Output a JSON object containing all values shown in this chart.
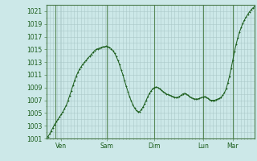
{
  "bg_color": "#cce8e8",
  "grid_color": "#aac8c8",
  "line_color": "#1a5c1a",
  "marker_color": "#1a5c1a",
  "vline_color": "#5a8a5a",
  "ylim": [
    1001,
    1022
  ],
  "ytick_min": 1001,
  "ytick_max": 1021,
  "ytick_step": 2,
  "xtick_labels": [
    "Ven",
    "Sam",
    "Dim",
    "Lun",
    "Mar"
  ],
  "xtick_positions": [
    0.07,
    0.29,
    0.52,
    0.755,
    0.895
  ],
  "vline_positions": [
    0.045,
    0.29,
    0.52,
    0.755,
    0.895
  ],
  "xlim": [
    0,
    1
  ],
  "pressure_data": [
    1001.0,
    1001.3,
    1001.7,
    1002.2,
    1002.7,
    1003.2,
    1003.6,
    1004.0,
    1004.4,
    1004.8,
    1005.2,
    1005.7,
    1006.2,
    1006.9,
    1007.7,
    1008.5,
    1009.3,
    1010.1,
    1010.8,
    1011.4,
    1011.9,
    1012.3,
    1012.7,
    1013.0,
    1013.3,
    1013.6,
    1013.9,
    1014.2,
    1014.5,
    1014.8,
    1015.0,
    1015.1,
    1015.2,
    1015.3,
    1015.4,
    1015.4,
    1015.5,
    1015.4,
    1015.3,
    1015.1,
    1014.8,
    1014.4,
    1013.9,
    1013.3,
    1012.6,
    1011.8,
    1011.0,
    1010.1,
    1009.2,
    1008.4,
    1007.6,
    1006.9,
    1006.3,
    1005.8,
    1005.4,
    1005.2,
    1005.2,
    1005.5,
    1005.9,
    1006.4,
    1007.0,
    1007.6,
    1008.1,
    1008.5,
    1008.8,
    1009.0,
    1009.1,
    1009.0,
    1008.8,
    1008.6,
    1008.4,
    1008.2,
    1008.0,
    1007.9,
    1007.8,
    1007.7,
    1007.6,
    1007.5,
    1007.4,
    1007.5,
    1007.6,
    1007.8,
    1008.0,
    1008.1,
    1008.0,
    1007.8,
    1007.6,
    1007.4,
    1007.3,
    1007.2,
    1007.2,
    1007.2,
    1007.3,
    1007.4,
    1007.5,
    1007.6,
    1007.5,
    1007.3,
    1007.1,
    1007.0,
    1007.0,
    1007.0,
    1007.1,
    1007.2,
    1007.3,
    1007.5,
    1007.8,
    1008.2,
    1008.8,
    1009.7,
    1010.8,
    1012.0,
    1013.3,
    1014.6,
    1015.8,
    1016.8,
    1017.7,
    1018.4,
    1019.1,
    1019.6,
    1020.1,
    1020.5,
    1020.9,
    1021.2,
    1021.5,
    1021.7
  ]
}
